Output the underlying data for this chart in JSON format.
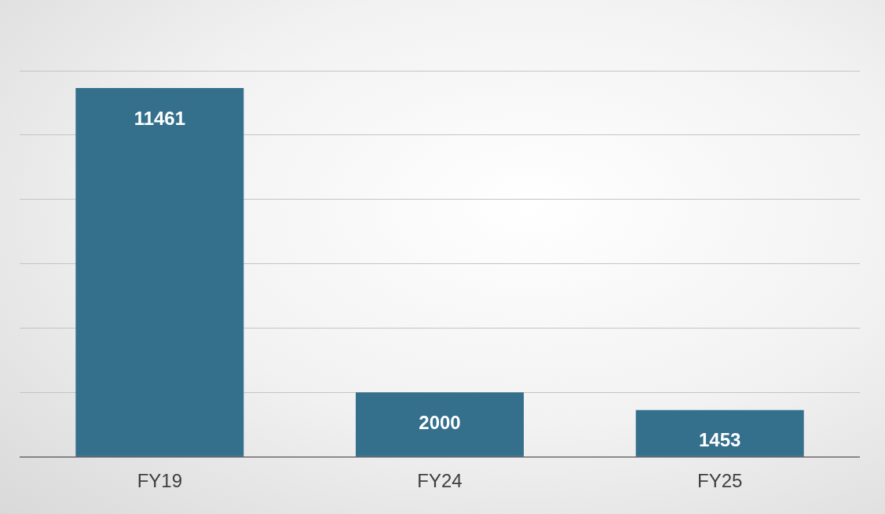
{
  "chart_data": {
    "type": "bar",
    "categories": [
      "FY19",
      "FY24",
      "FY25"
    ],
    "values": [
      11461,
      2000,
      1453
    ],
    "color": "#346f8c",
    "grid": "y",
    "tick_labels": "x",
    "data_labels": true,
    "legend": false
  }
}
